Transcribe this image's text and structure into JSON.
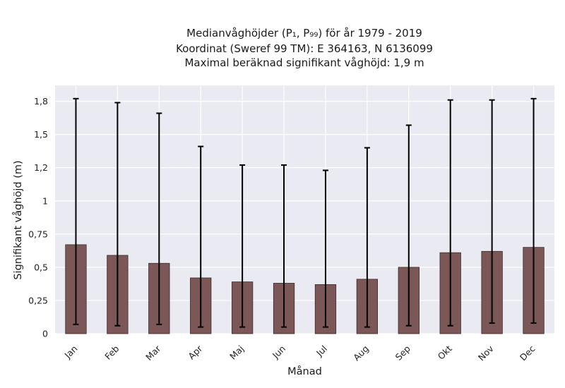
{
  "chart_data": {
    "type": "bar",
    "title_lines": [
      "Medianvåghöjder (P₁, P₉₉) för år 1979 - 2019",
      "Koordinat (Sweref 99 TM): E 364163, N 6136099",
      "Maximal beräknad signifikant våghöjd: 1,9 m"
    ],
    "xlabel": "Månad",
    "ylabel": "Signifikant våghöjd (m)",
    "categories": [
      "Jan",
      "Feb",
      "Mar",
      "Apr",
      "Maj",
      "Jun",
      "Jul",
      "Aug",
      "Sep",
      "Okt",
      "Nov",
      "Dec"
    ],
    "values": [
      0.67,
      0.59,
      0.53,
      0.42,
      0.39,
      0.38,
      0.37,
      0.41,
      0.5,
      0.61,
      0.62,
      0.65
    ],
    "p1": [
      0.07,
      0.06,
      0.07,
      0.05,
      0.05,
      0.05,
      0.05,
      0.05,
      0.06,
      0.06,
      0.08,
      0.08
    ],
    "p99": [
      1.77,
      1.74,
      1.66,
      1.41,
      1.27,
      1.27,
      1.23,
      1.4,
      1.57,
      1.76,
      1.76,
      1.77
    ],
    "yticks": [
      0,
      0.25,
      0.5,
      0.75,
      1,
      1.25,
      1.5,
      1.75
    ],
    "ytick_labels": [
      "0",
      "0,25",
      "0,5",
      "0,75",
      "1",
      "1,2",
      "1,5",
      "1,8"
    ],
    "ylim": [
      0,
      1.87
    ],
    "grid": true,
    "bar_color": "#7b5757",
    "plot_background": "#eaeaf2"
  }
}
